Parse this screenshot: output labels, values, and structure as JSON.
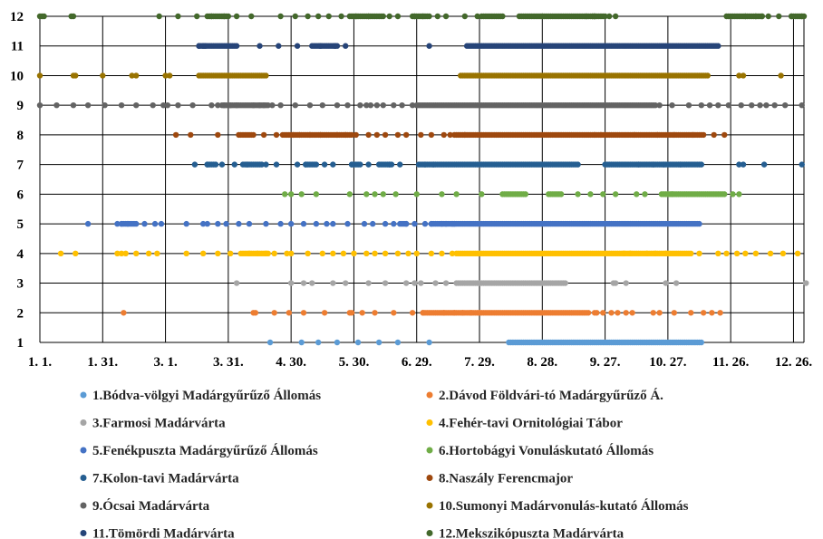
{
  "chart_data": {
    "type": "scatter",
    "title": "",
    "xlabel": "",
    "ylabel": "",
    "x_ticks": [
      "1. 1.",
      "1. 31.",
      "3. 1.",
      "3. 31.",
      "4. 30.",
      "5. 30.",
      "6. 29.",
      "7. 29.",
      "8. 28.",
      "9. 27.",
      "10. 27.",
      "11. 26.",
      "12. 26."
    ],
    "y_ticks": [
      "1",
      "2",
      "3",
      "4",
      "5",
      "6",
      "7",
      "8",
      "9",
      "10",
      "11",
      "12"
    ],
    "xlim": [
      1,
      366
    ],
    "ylim": [
      1,
      12
    ],
    "grid": true,
    "legend_position": "bottom",
    "series": [
      {
        "name": "1.Bódva-völgyi Madárgyűrűző Állomás",
        "color": "#5b9bd5",
        "y": 1,
        "x": [
          111,
          126,
          134,
          143,
          153,
          163,
          172,
          187
        ],
        "ranges": [
          [
            225,
            317
          ]
        ]
      },
      {
        "name": "2.Dávod Földvári-tó Madárgyűrűző Á.",
        "color": "#ed7d31",
        "y": 2,
        "x": [
          41,
          103,
          104,
          113,
          120,
          127,
          137,
          149,
          150,
          155,
          161,
          170,
          179,
          184,
          194,
          199,
          203,
          207,
          211,
          266,
          267,
          270,
          274,
          277,
          281,
          284,
          294,
          297,
          304,
          312,
          318,
          322,
          326
        ],
        "ranges": [
          [
            184,
            263
          ]
        ]
      },
      {
        "name": "3.Farmosi Madárvárta",
        "color": "#a5a5a5",
        "y": 3,
        "x": [
          95,
          121,
          127,
          131,
          141,
          147,
          158,
          166,
          176,
          180,
          183,
          190,
          195,
          275,
          276,
          281,
          300,
          305,
          367
        ],
        "ranges": [
          [
            200,
            252
          ]
        ]
      },
      {
        "name": "4.Fehér-tavi Ornitológiai Tábor",
        "color": "#ffc000",
        "y": 4,
        "x": [
          11,
          18,
          38,
          40,
          42,
          47,
          53,
          57,
          71,
          79,
          86,
          92,
          101,
          105,
          109,
          113,
          119,
          121,
          129,
          136,
          141,
          146,
          151,
          157,
          161,
          166,
          172,
          177,
          181,
          188,
          193,
          198,
          280,
          283,
          291,
          295,
          300,
          316,
          325,
          329,
          334,
          338,
          343,
          350,
          356,
          363
        ],
        "ranges": [
          [
            97,
            110
          ],
          [
            200,
            312
          ]
        ]
      },
      {
        "name": "5.Fenékpuszta Madárgyűrűző Állomás",
        "color": "#4472c4",
        "y": 5,
        "x": [
          24,
          38,
          40,
          43,
          51,
          56,
          59,
          71,
          79,
          81,
          86,
          90,
          96,
          101,
          109,
          116,
          121,
          127,
          133,
          138,
          141,
          148,
          156,
          160,
          166,
          170,
          176,
          180,
          185,
          188,
          193,
          195,
          198,
          199
        ],
        "ranges": [
          [
            40,
            47
          ],
          [
            173,
            176
          ],
          [
            188,
            316
          ]
        ]
      },
      {
        "name": "6.Hortobágyi Vonuláskutató Állomás",
        "color": "#70ad47",
        "y": 6,
        "x": [
          118,
          121,
          126,
          133,
          149,
          157,
          161,
          165,
          171,
          181,
          193,
          200,
          212,
          258,
          264,
          270,
          276,
          286,
          290,
          303,
          332,
          335
        ],
        "ranges": [
          [
            222,
            233
          ],
          [
            244,
            250
          ],
          [
            298,
            328
          ]
        ]
      },
      {
        "name": "7.Kolon-tavi Madárvárta",
        "color": "#255e91",
        "y": 7,
        "x": [
          75,
          81,
          88,
          94,
          100,
          109,
          114,
          124,
          128,
          137,
          141,
          150,
          158,
          168,
          173,
          185,
          189,
          287,
          294,
          299,
          307,
          335,
          337,
          347,
          365
        ],
        "ranges": [
          [
            81,
            85
          ],
          [
            98,
            107
          ],
          [
            128,
            133
          ],
          [
            150,
            154
          ],
          [
            163,
            169
          ],
          [
            182,
            258
          ],
          [
            271,
            317
          ]
        ]
      },
      {
        "name": "8.Naszály Ferencmajor",
        "color": "#9e480e",
        "y": 8,
        "x": [
          66,
          73,
          86,
          96,
          103,
          108,
          114,
          122,
          125,
          130,
          135,
          143,
          147,
          152,
          158,
          162,
          166,
          172,
          176,
          183,
          188,
          194,
          197,
          204,
          211,
          266,
          269,
          285,
          296,
          304,
          313,
          323,
          328
        ],
        "ranges": [
          [
            97,
            102
          ],
          [
            117,
            150
          ],
          [
            199,
            318
          ]
        ]
      },
      {
        "name": "9.Ócsai Madárvárta",
        "color": "#636363",
        "y": 9,
        "x": [
          1,
          9,
          17,
          24,
          32,
          40,
          47,
          55,
          60,
          62,
          67,
          74,
          83,
          86,
          89,
          92,
          95,
          103,
          106,
          108,
          112,
          116,
          123,
          130,
          136,
          143,
          148,
          154,
          157,
          159,
          162,
          165,
          170,
          174,
          179,
          181,
          297,
          303,
          311,
          317,
          321,
          325,
          330,
          336,
          341,
          345,
          348,
          352,
          357,
          365
        ],
        "ranges": [
          [
            88,
            110
          ],
          [
            182,
            295
          ]
        ]
      },
      {
        "name": "10.Sumonyi Madárvonulás-kutató Állomás",
        "color": "#997300",
        "y": 10,
        "x": [
          1,
          17,
          18,
          31,
          45,
          47,
          61,
          63,
          77,
          335,
          337,
          355
        ],
        "ranges": [
          [
            78,
            109
          ],
          [
            202,
            320
          ]
        ]
      },
      {
        "name": "11.Tömördi Madárvárta",
        "color": "#264478",
        "y": 11,
        "x": [
          77,
          79,
          80,
          106,
          115,
          124,
          135,
          142,
          147,
          187
        ],
        "ranges": [
          [
            77,
            95
          ],
          [
            131,
            143
          ],
          [
            205,
            325
          ]
        ]
      },
      {
        "name": "12.Mekszikópuszta Madárvárta",
        "color": "#43682b",
        "y": 12,
        "x": [
          1,
          2,
          3,
          16,
          17,
          58,
          67,
          76,
          83,
          89,
          95,
          102,
          116,
          123,
          129,
          134,
          139,
          145,
          152,
          158,
          168,
          172,
          180,
          184,
          191,
          195,
          204,
          210,
          241,
          262,
          266,
          273,
          276,
          343,
          346,
          349,
          354,
          360,
          365
        ],
        "ranges": [
          [
            81,
            91
          ],
          [
            149,
            165
          ],
          [
            179,
            187
          ],
          [
            212,
            222
          ],
          [
            230,
            266
          ],
          [
            265,
            271
          ],
          [
            329,
            338
          ],
          [
            338,
            346
          ],
          [
            360,
            366
          ]
        ]
      }
    ]
  }
}
